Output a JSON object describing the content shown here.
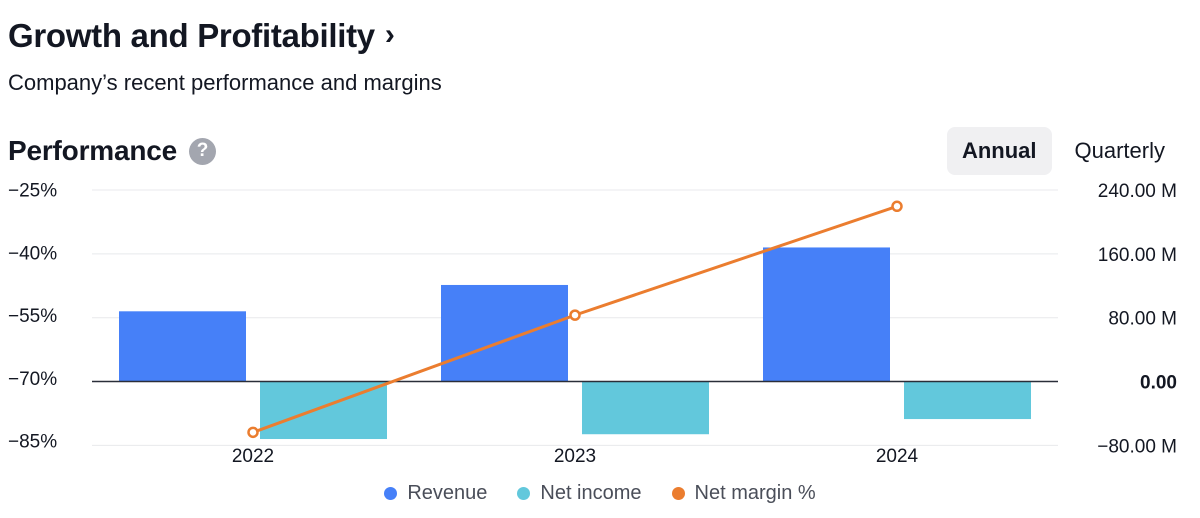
{
  "header": {
    "title": "Growth and Profitability",
    "chevron": "›",
    "subtitle": "Company’s recent performance and margins"
  },
  "section": {
    "title": "Performance",
    "help_icon_glyph": "?"
  },
  "tabs": [
    {
      "label": "Annual",
      "active": true
    },
    {
      "label": "Quarterly",
      "active": false
    }
  ],
  "colors": {
    "revenue": "#4680f8",
    "net_income": "#62c8dc",
    "net_margin": "#eb7d2f",
    "grid": "#e8e9ec",
    "zero_line": "#2a2e39",
    "tick_text": "#131722"
  },
  "chart_data": {
    "type": "bar",
    "title": "Performance",
    "categories": [
      "2022",
      "2023",
      "2024"
    ],
    "series": [
      {
        "name": "Revenue",
        "kind": "bar",
        "axis": "right",
        "values": [
          88,
          121,
          168
        ]
      },
      {
        "name": "Net income",
        "kind": "bar",
        "axis": "right",
        "values": [
          -72,
          -66,
          -47
        ]
      },
      {
        "name": "Net margin %",
        "kind": "line",
        "axis": "left",
        "values": [
          -83,
          -55,
          -29
        ]
      }
    ],
    "left_axis": {
      "ticks": [
        -25,
        -40,
        -55,
        -70,
        -85
      ],
      "tick_labels": [
        "−25%",
        "−40%",
        "−55%",
        "−70%",
        "−85%"
      ],
      "range": [
        -86.5,
        -23.2
      ]
    },
    "right_axis": {
      "ticks": [
        240,
        160,
        80,
        0,
        -80
      ],
      "tick_labels": [
        "240.00 M",
        "160.00 M",
        "80.00 M",
        "0.00",
        "−80.00 M"
      ],
      "range": [
        -82,
        250
      ]
    },
    "legend": [
      "Revenue",
      "Net income",
      "Net margin %"
    ]
  }
}
